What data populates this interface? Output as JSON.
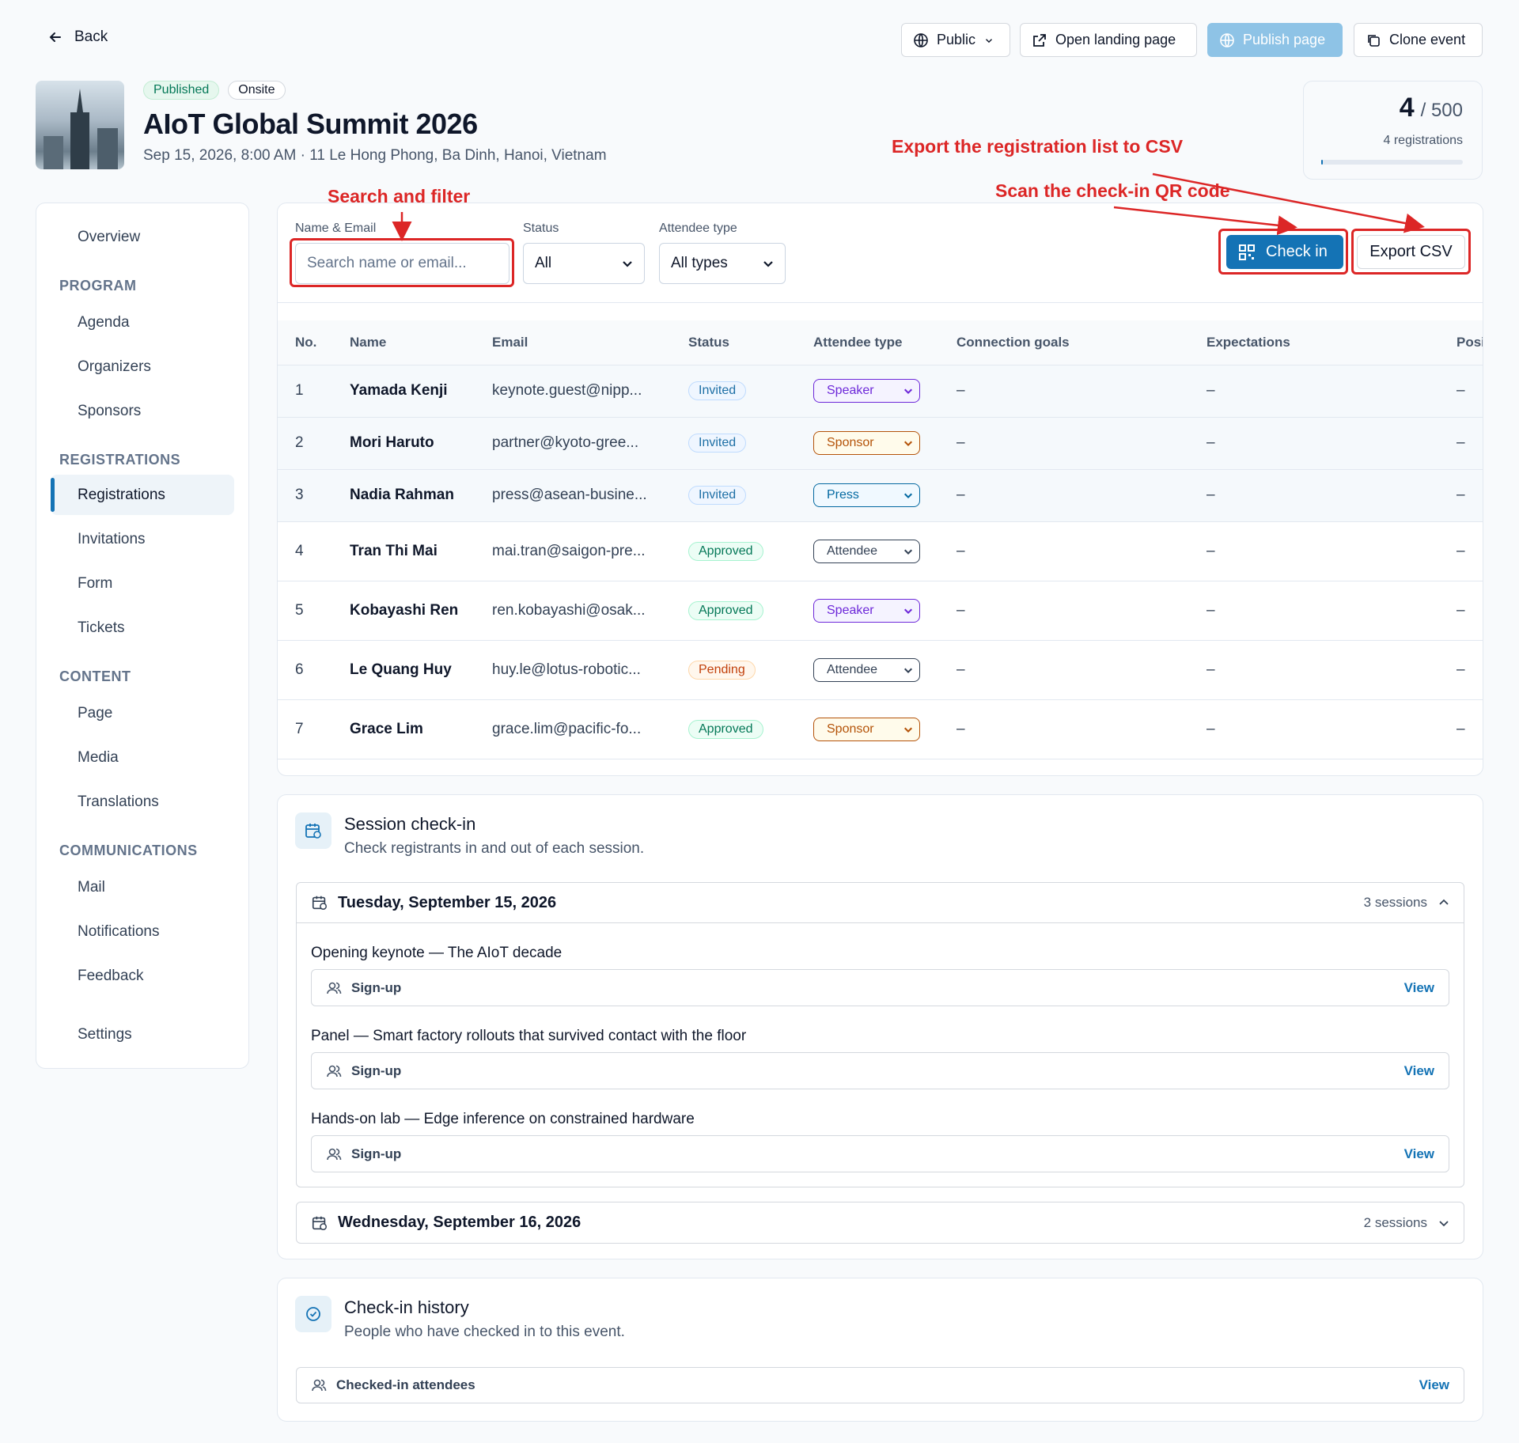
{
  "header": {
    "back": "Back",
    "visibility": "Public",
    "open_landing": "Open landing page",
    "publish": "Publish page",
    "clone": "Clone event",
    "badges": [
      "Published",
      "Onsite"
    ],
    "title": "AIoT Global Summit 2026",
    "subtitle": "Sep 15, 2026, 8:00 AM · 11 Le Hong Phong, Ba Dinh, Hanoi, Vietnam",
    "capacity": {
      "count": 4,
      "limit": "/ 500",
      "label": "4 registrations"
    }
  },
  "annotations": [
    "Search and filter",
    "Export the registration list to CSV",
    "Scan the check-in QR code"
  ],
  "sidebar": {
    "overview": "Overview",
    "groups": [
      {
        "heading": "PROGRAM",
        "items": [
          "Agenda",
          "Organizers",
          "Sponsors"
        ]
      },
      {
        "heading": "REGISTRATIONS",
        "items": [
          "Registrations",
          "Invitations",
          "Form",
          "Tickets"
        ]
      },
      {
        "heading": "CONTENT",
        "items": [
          "Page",
          "Media",
          "Translations"
        ]
      },
      {
        "heading": "COMMUNICATIONS",
        "items": [
          "Mail",
          "Notifications",
          "Feedback"
        ]
      }
    ],
    "active": "Registrations",
    "settings": "Settings"
  },
  "filters": {
    "name_label": "Name & Email",
    "name_placeholder": "Search name or email...",
    "status_label": "Status",
    "status_value": "All",
    "type_label": "Attendee type",
    "type_value": "All types",
    "check_in": "Check in",
    "export": "Export CSV"
  },
  "table": {
    "columns": [
      "No.",
      "Name",
      "Email",
      "Status",
      "Attendee type",
      "Connection goals",
      "Expectations",
      "Position"
    ],
    "rows": [
      {
        "no": 1,
        "name": "Yamada Kenji",
        "email": "keynote.guest@nipp...",
        "status": "Invited",
        "status_tone": "blue",
        "type": "Speaker",
        "type_tone": "purple",
        "goals": "–",
        "expectations": "–",
        "position": "–",
        "highlighted": true
      },
      {
        "no": 2,
        "name": "Mori Haruto",
        "email": "partner@kyoto-gree...",
        "status": "Invited",
        "status_tone": "blue",
        "type": "Sponsor",
        "type_tone": "amber",
        "goals": "–",
        "expectations": "–",
        "position": "–",
        "highlighted": true
      },
      {
        "no": 3,
        "name": "Nadia Rahman",
        "email": "press@asean-busine...",
        "status": "Invited",
        "status_tone": "blue",
        "type": "Press",
        "type_tone": "sky",
        "goals": "–",
        "expectations": "–",
        "position": "–",
        "highlighted": true
      },
      {
        "no": 4,
        "name": "Tran Thi Mai",
        "email": "mai.tran@saigon-pre...",
        "status": "Approved",
        "status_tone": "green",
        "type": "Attendee",
        "type_tone": "gray",
        "goals": "–",
        "expectations": "–",
        "position": "–",
        "highlighted": false
      },
      {
        "no": 5,
        "name": "Kobayashi Ren",
        "email": "ren.kobayashi@osak...",
        "status": "Approved",
        "status_tone": "green",
        "type": "Speaker",
        "type_tone": "purple",
        "goals": "–",
        "expectations": "–",
        "position": "–",
        "highlighted": false
      },
      {
        "no": 6,
        "name": "Le Quang Huy",
        "email": "huy.le@lotus-robotic...",
        "status": "Pending",
        "status_tone": "orange",
        "type": "Attendee",
        "type_tone": "gray",
        "goals": "–",
        "expectations": "–",
        "position": "–",
        "highlighted": false
      },
      {
        "no": 7,
        "name": "Grace Lim",
        "email": "grace.lim@pacific-fo...",
        "status": "Approved",
        "status_tone": "green",
        "type": "Sponsor",
        "type_tone": "amber",
        "goals": "–",
        "expectations": "–",
        "position": "–",
        "highlighted": false
      }
    ]
  },
  "session_checkin": {
    "title": "Session check-in",
    "subtitle": "Check registrants in and out of each session.",
    "days": [
      {
        "date": "Tuesday, September 15, 2026",
        "count": "3 sessions",
        "expanded": true,
        "sessions": [
          {
            "title": "Opening keynote — The AIoT decade",
            "label": "Sign-up",
            "action": "View"
          },
          {
            "title": "Panel — Smart factory rollouts that survived contact with the floor",
            "label": "Sign-up",
            "action": "View"
          },
          {
            "title": "Hands-on lab — Edge inference on constrained hardware",
            "label": "Sign-up",
            "action": "View"
          }
        ]
      },
      {
        "date": "Wednesday, September 16, 2026",
        "count": "2 sessions",
        "expanded": false,
        "sessions": []
      }
    ]
  },
  "history": {
    "title": "Check-in history",
    "subtitle": "People who have checked in to this event.",
    "row": "Checked-in attendees",
    "action": "View"
  }
}
